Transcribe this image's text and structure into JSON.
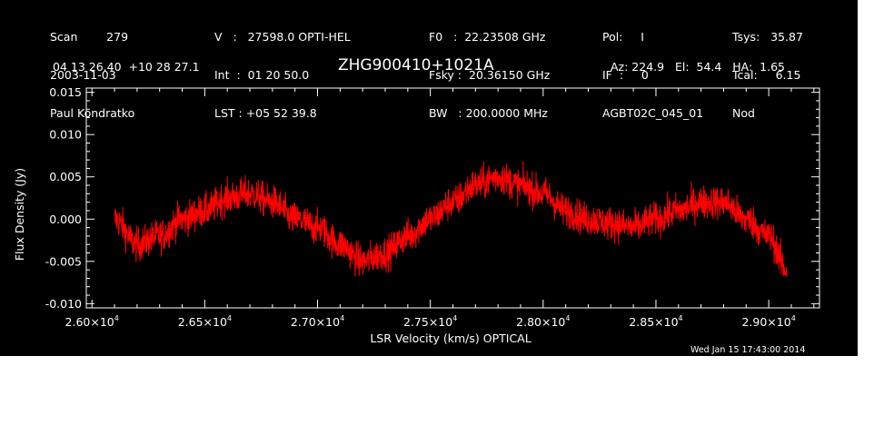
{
  "header": {
    "col1": [
      "Scan        279",
      "2003-11-03",
      "Paul Kondratko"
    ],
    "col2": [
      "V   :   27598.0 OPTI-HEL",
      "Int  :  01 20 50.0",
      "LST : +05 52 39.8"
    ],
    "col3": [
      "F0   :  22.23508 GHz",
      "Fsky :  20.36150 GHz",
      "BW   : 200.0000 MHz"
    ],
    "col4": [
      "Pol:     I",
      "IF  :     0",
      "AGBT02C_045_01"
    ],
    "col5": [
      "Tsys:   35.87",
      "Tcal:     6.15",
      "Nod"
    ],
    "coords": "04 13 26.40  +10 28 27.1",
    "source": "ZHG900410+1021A",
    "pointing": "Az: 224.9   El:  54.4   HA:  1.65",
    "timestamp": "Wed Jan 15 17:43:00 2014"
  },
  "colors": {
    "background": "#000000",
    "axes": "#ffffff",
    "trace": "#ff0000"
  },
  "chart_data": {
    "type": "line",
    "xlabel": "LSR Velocity (km/s) OPTICAL",
    "ylabel": "Flux Density (Jy)",
    "xlim": [
      25975,
      29225
    ],
    "ylim": [
      -0.0105,
      0.0155
    ],
    "x_ticks": [
      26000,
      26500,
      27000,
      27500,
      28000,
      28500,
      29000
    ],
    "x_tick_mantissas": [
      "2.60",
      "2.65",
      "2.70",
      "2.75",
      "2.80",
      "2.85",
      "2.90"
    ],
    "x_tick_exponent": "4",
    "y_ticks": [
      -0.01,
      -0.005,
      0.0,
      0.005,
      0.01,
      0.015
    ],
    "y_tick_labels": [
      "-0.010",
      "-0.005",
      "0.000",
      "0.005",
      "0.010",
      "0.015"
    ],
    "grid": false,
    "noise_amplitude": 0.002,
    "series": [
      {
        "x": [
          26100,
          26200,
          26300,
          26400,
          26500,
          26600,
          26700,
          26800,
          26900,
          27000,
          27100,
          27200,
          27300,
          27400,
          27500,
          27600,
          27700,
          27800,
          27900,
          28000,
          28100,
          28200,
          28300,
          28400,
          28500,
          28600,
          28700,
          28800,
          28900,
          29000,
          29080
        ],
        "y": [
          0.0,
          -0.003,
          -0.002,
          0.0,
          0.001,
          0.0025,
          0.003,
          0.002,
          0.0,
          -0.001,
          -0.003,
          -0.005,
          -0.004,
          -0.002,
          0.0,
          0.002,
          0.004,
          0.005,
          0.004,
          0.003,
          0.001,
          0.0,
          -0.0005,
          -0.001,
          0.0,
          0.001,
          0.002,
          0.002,
          0.0,
          -0.002,
          -0.006
        ]
      }
    ]
  }
}
